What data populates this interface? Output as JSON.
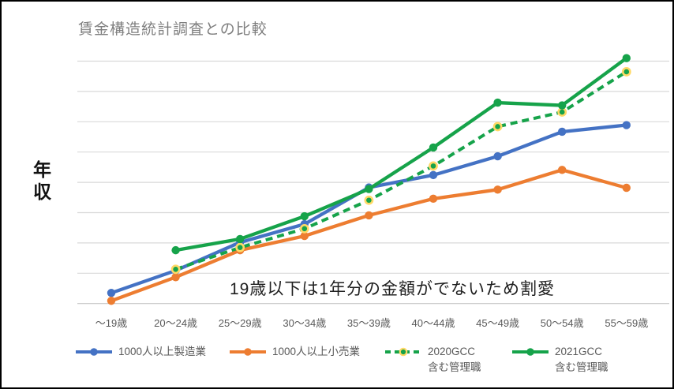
{
  "window": {
    "background": "#ffffff",
    "border_color": "#000000"
  },
  "chart_data": {
    "type": "line",
    "title": "賃金構造統計調査との比較",
    "ylabel": "年収",
    "xlabel": "",
    "annotation": "19歳以下は1年分の金額がでないため割愛",
    "categories": [
      "～19歳",
      "20～24歳",
      "25～29歳",
      "30～34歳",
      "35～39歳",
      "40～44歳",
      "45～49歳",
      "50～54歳",
      "55～59歳"
    ],
    "series": [
      {
        "name": "1000人以上製造業",
        "color": "#4472C4",
        "style": "solid",
        "values": [
          0.35,
          1.09,
          2.02,
          2.62,
          3.83,
          4.24,
          4.86,
          5.67,
          5.89
        ]
      },
      {
        "name": "1000人以上小売業",
        "color": "#ED7D31",
        "style": "solid",
        "values": [
          0.09,
          0.87,
          1.76,
          2.23,
          2.91,
          3.46,
          3.76,
          4.41,
          3.82
        ]
      },
      {
        "name": "2020GCC 含む管理職",
        "color": "#16A34A",
        "style": "dashed",
        "marker_ring": "#FFD966",
        "values": [
          null,
          1.13,
          1.85,
          2.47,
          3.41,
          4.54,
          5.84,
          6.32,
          7.65
        ]
      },
      {
        "name": "2021GCC 含む管理職",
        "color": "#16A34A",
        "style": "solid",
        "values": [
          null,
          1.76,
          2.13,
          2.88,
          3.78,
          5.15,
          6.63,
          6.54,
          8.1
        ]
      }
    ],
    "ylim": [
      0,
      8.5
    ],
    "y_tick_labels": "none",
    "grid": "horizontal",
    "gridline_count": 9,
    "legend_position": "bottom",
    "colors": {
      "gridline": "#D9D9D9",
      "axis_line": "#C6C6C6",
      "title_text": "#7F7F7F",
      "axis_text": "#595959",
      "annotation_text": "#1F1F1F"
    }
  },
  "legend": {
    "items": [
      {
        "label": "1000人以上製造業",
        "sublabel": "",
        "series": 0
      },
      {
        "label": "1000人以上小売業",
        "sublabel": "",
        "series": 1
      },
      {
        "label": "2020GCC",
        "sublabel": "含む管理職",
        "series": 2
      },
      {
        "label": "2021GCC",
        "sublabel": "含む管理職",
        "series": 3
      }
    ]
  }
}
